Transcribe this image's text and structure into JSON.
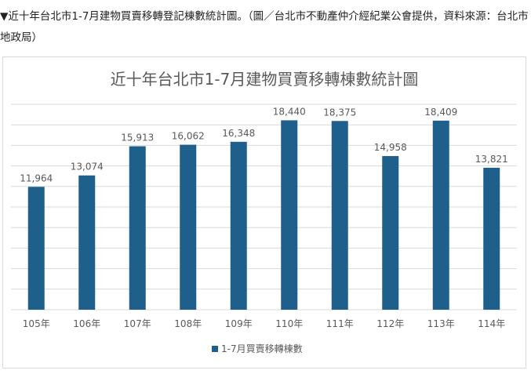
{
  "caption": "▼近十年台北市1-7月建物買賣移轉登記棟數統計圖。（圖／台北市不動產仲介經紀業公會提供，資料來源：台北市地政局）",
  "chart_data": {
    "type": "bar",
    "title": "近十年台北市1-7月建物買賣移轉棟數統計圖",
    "categories": [
      "105年",
      "106年",
      "107年",
      "108年",
      "109年",
      "110年",
      "111年",
      "112年",
      "113年",
      "114年"
    ],
    "series": [
      {
        "name": "1-7月買賣移轉棟數",
        "values": [
          11964,
          13074,
          15913,
          16062,
          16348,
          18440,
          18375,
          14958,
          18409,
          13821
        ],
        "labels": [
          "11,964",
          "13,074",
          "15,913",
          "16,062",
          "16,348",
          "18,440",
          "18,375",
          "14,958",
          "18,409",
          "13,821"
        ]
      }
    ],
    "ylim": [
      0,
      20000
    ],
    "grid": true,
    "legend_position": "bottom",
    "colors": {
      "bar": "#1f5f8b",
      "label": "#595959",
      "highlight_label": "#e53935",
      "grid": "#d9d9d9"
    },
    "highlight_index": 9
  }
}
